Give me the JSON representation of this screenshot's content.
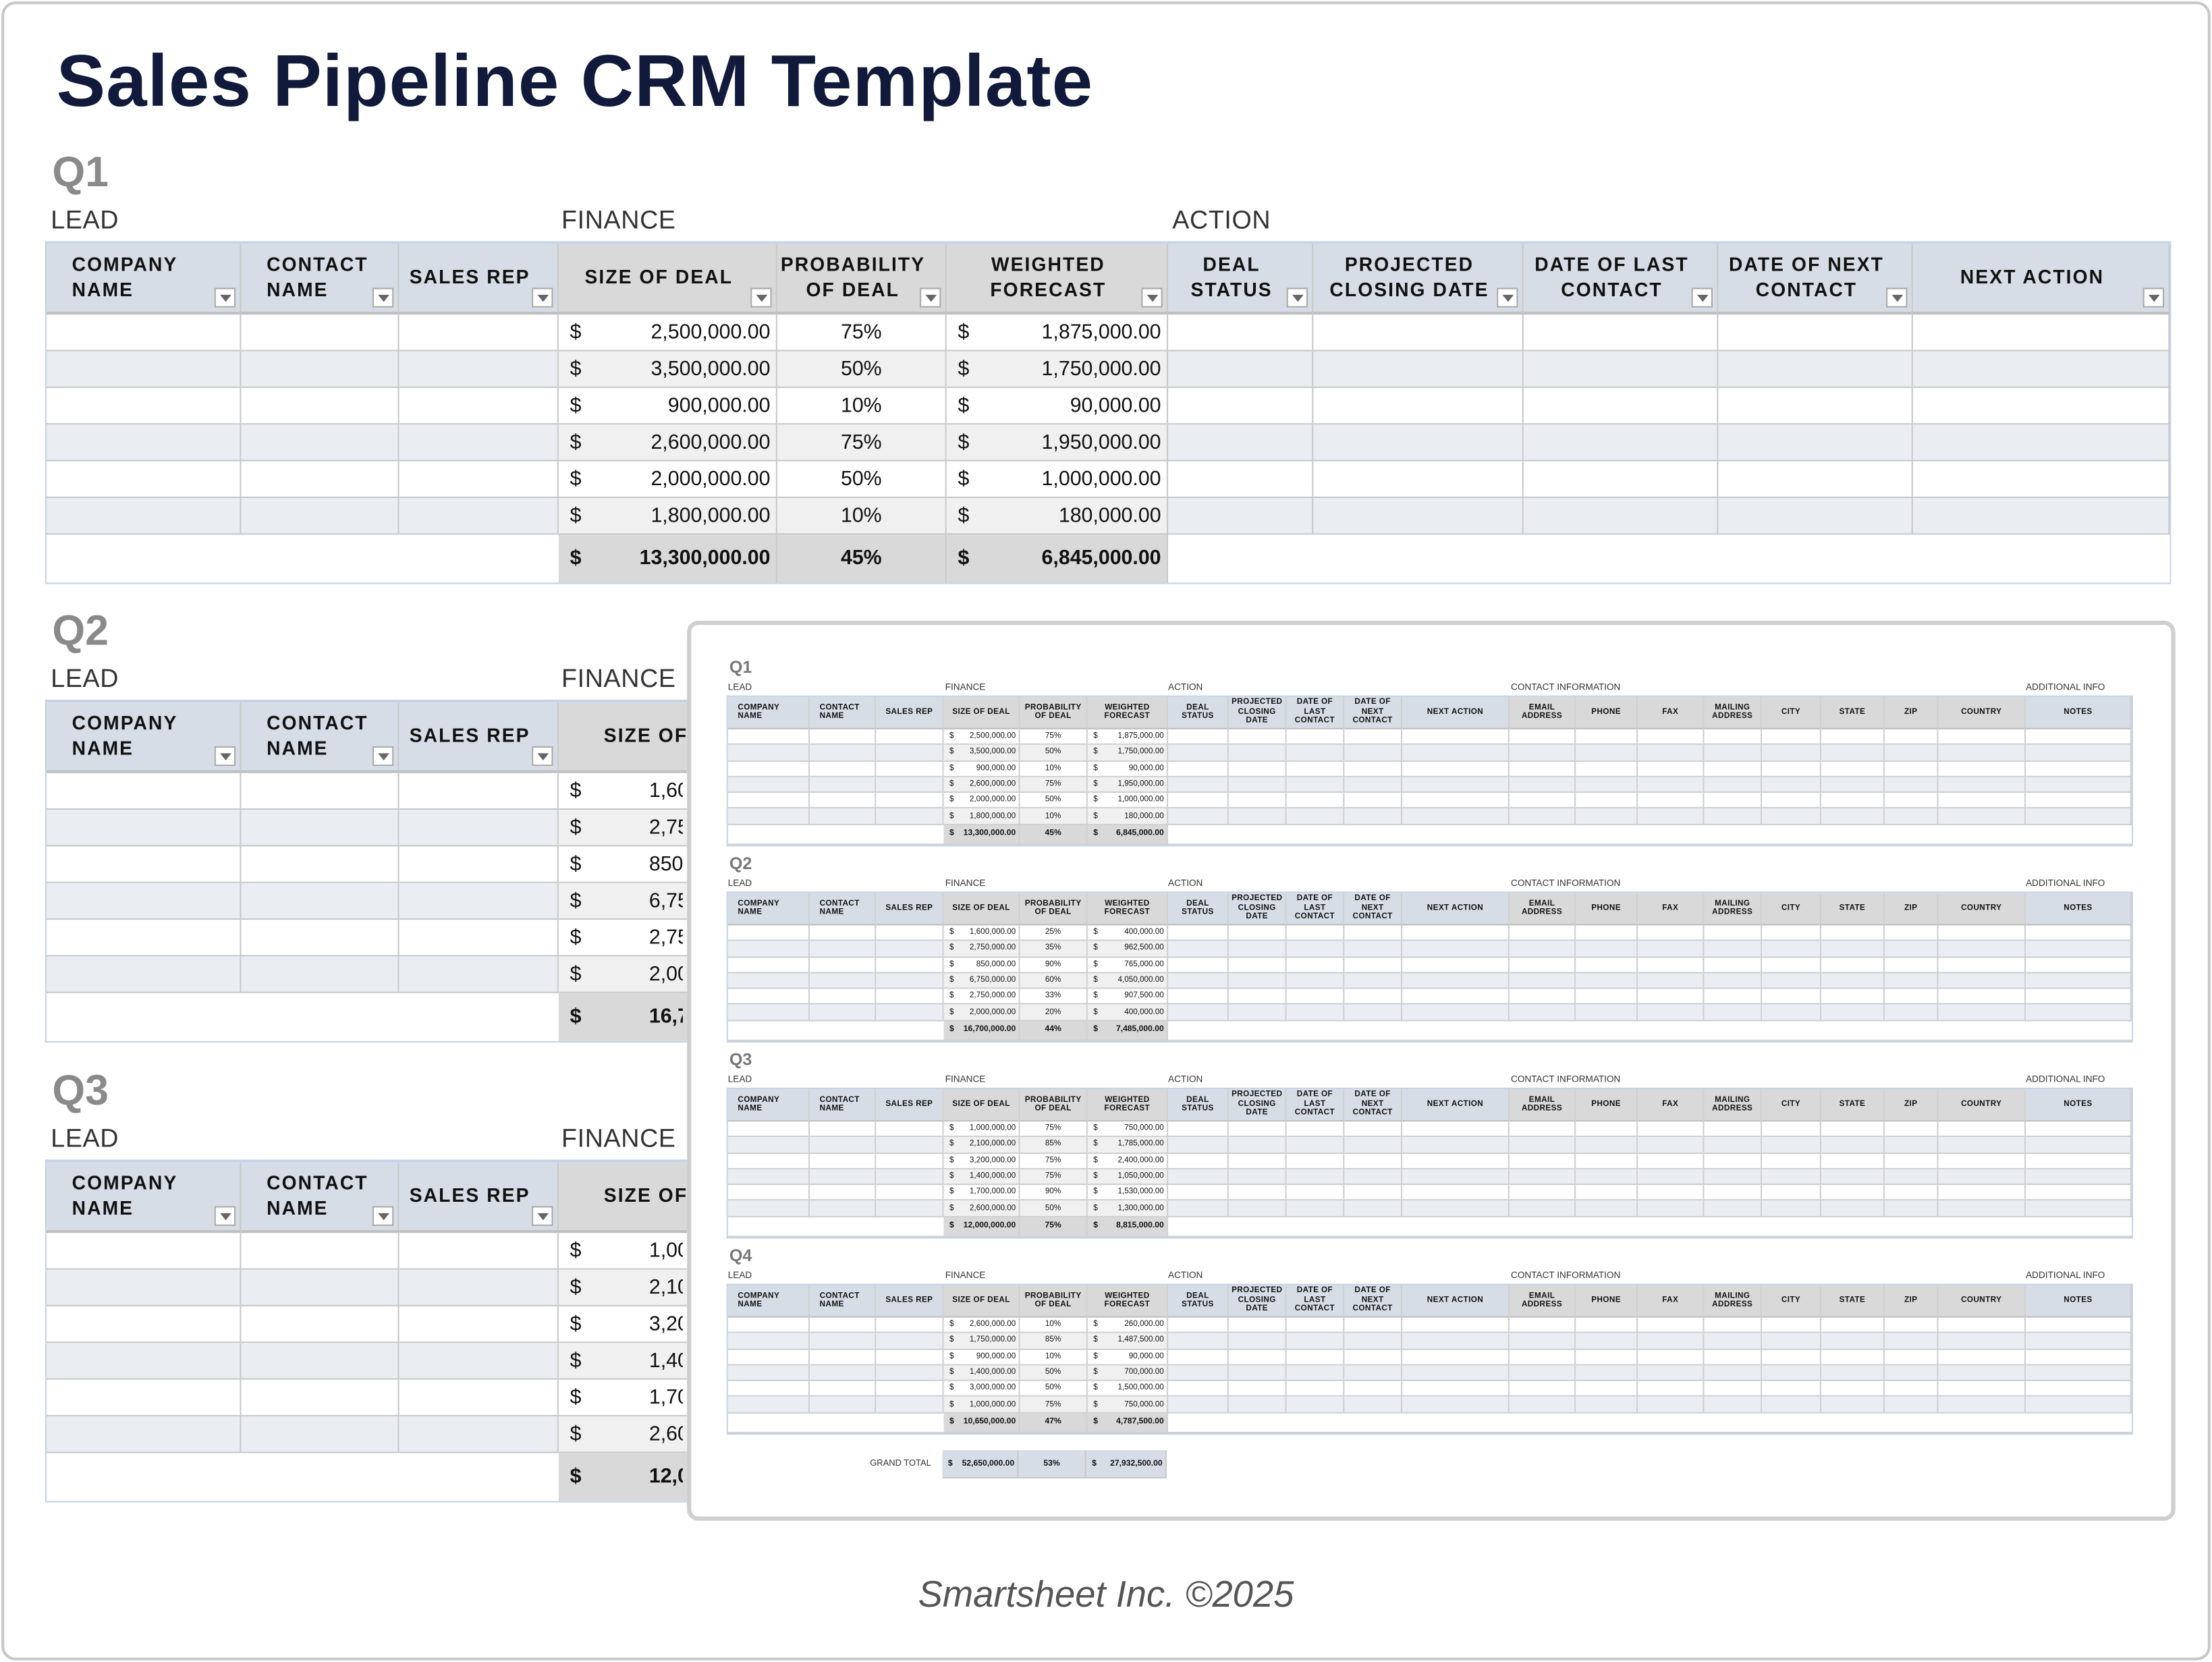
{
  "title": "Sales Pipeline CRM Template",
  "footer": "Smartsheet Inc. ©2025",
  "groups": {
    "lead": "LEAD",
    "finance": "FINANCE",
    "action": "ACTION",
    "contact": "CONTACT INFORMATION",
    "additional": "ADDITIONAL INFO"
  },
  "columns": [
    "COMPANY NAME",
    "CONTACT NAME",
    "SALES REP",
    "SIZE OF DEAL",
    "PROBABILITY OF DEAL",
    "WEIGHTED FORECAST",
    "DEAL STATUS",
    "PROJECTED CLOSING DATE",
    "DATE OF LAST CONTACT",
    "DATE OF NEXT CONTACT",
    "NEXT ACTION",
    "EMAIL ADDRESS",
    "PHONE",
    "FAX",
    "MAILING ADDRESS",
    "CITY",
    "STATE",
    "ZIP",
    "COUNTRY",
    "NOTES"
  ],
  "currency_symbol": "$",
  "quarters": [
    {
      "label": "Q1",
      "rows": [
        {
          "size": "2,500,000.00",
          "prob": "75%",
          "weighted": "1,875,000.00"
        },
        {
          "size": "3,500,000.00",
          "prob": "50%",
          "weighted": "1,750,000.00"
        },
        {
          "size": "900,000.00",
          "prob": "10%",
          "weighted": "90,000.00"
        },
        {
          "size": "2,600,000.00",
          "prob": "75%",
          "weighted": "1,950,000.00"
        },
        {
          "size": "2,000,000.00",
          "prob": "50%",
          "weighted": "1,000,000.00"
        },
        {
          "size": "1,800,000.00",
          "prob": "10%",
          "weighted": "180,000.00"
        }
      ],
      "total": {
        "size": "13,300,000.00",
        "prob": "45%",
        "weighted": "6,845,000.00"
      }
    },
    {
      "label": "Q2",
      "rows": [
        {
          "size": "1,600,000.00",
          "prob": "25%",
          "weighted": "400,000.00"
        },
        {
          "size": "2,750,000.00",
          "prob": "35%",
          "weighted": "962,500.00"
        },
        {
          "size": "850,000.00",
          "prob": "90%",
          "weighted": "765,000.00"
        },
        {
          "size": "6,750,000.00",
          "prob": "60%",
          "weighted": "4,050,000.00"
        },
        {
          "size": "2,750,000.00",
          "prob": "33%",
          "weighted": "907,500.00"
        },
        {
          "size": "2,000,000.00",
          "prob": "20%",
          "weighted": "400,000.00"
        }
      ],
      "total": {
        "size": "16,700,000.00",
        "prob": "44%",
        "weighted": "7,485,000.00"
      }
    },
    {
      "label": "Q3",
      "rows": [
        {
          "size": "1,000,000.00",
          "prob": "75%",
          "weighted": "750,000.00"
        },
        {
          "size": "2,100,000.00",
          "prob": "85%",
          "weighted": "1,785,000.00"
        },
        {
          "size": "3,200,000.00",
          "prob": "75%",
          "weighted": "2,400,000.00"
        },
        {
          "size": "1,400,000.00",
          "prob": "75%",
          "weighted": "1,050,000.00"
        },
        {
          "size": "1,700,000.00",
          "prob": "90%",
          "weighted": "1,530,000.00"
        },
        {
          "size": "2,600,000.00",
          "prob": "50%",
          "weighted": "1,300,000.00"
        }
      ],
      "total": {
        "size": "12,000,000.00",
        "prob": "75%",
        "weighted": "8,815,000.00"
      }
    },
    {
      "label": "Q4",
      "rows": [
        {
          "size": "2,600,000.00",
          "prob": "10%",
          "weighted": "260,000.00"
        },
        {
          "size": "1,750,000.00",
          "prob": "85%",
          "weighted": "1,487,500.00"
        },
        {
          "size": "900,000.00",
          "prob": "10%",
          "weighted": "90,000.00"
        },
        {
          "size": "1,400,000.00",
          "prob": "50%",
          "weighted": "700,000.00"
        },
        {
          "size": "3,000,000.00",
          "prob": "50%",
          "weighted": "1,500,000.00"
        },
        {
          "size": "1,000,000.00",
          "prob": "75%",
          "weighted": "750,000.00"
        }
      ],
      "total": {
        "size": "10,650,000.00",
        "prob": "47%",
        "weighted": "4,787,500.00"
      }
    }
  ],
  "grand_total": {
    "label": "GRAND TOTAL",
    "size": "52,650,000.00",
    "prob": "53%",
    "weighted": "27,932,500.00"
  },
  "colors": {
    "title": "#111a3a",
    "header_blue": "#d6dde6",
    "header_gray": "#d9d9d9",
    "row_alt": "#eaedf2"
  }
}
